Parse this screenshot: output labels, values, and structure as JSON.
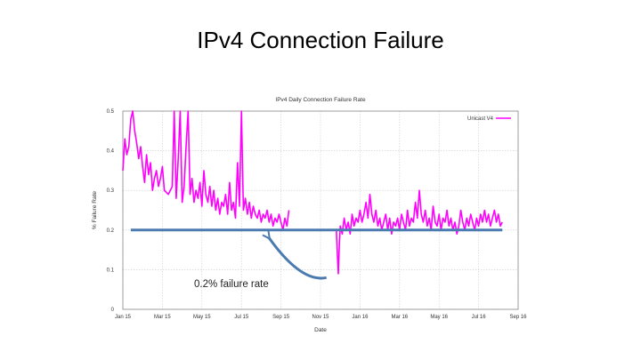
{
  "slide": {
    "title": "IPv4 Connection Failure"
  },
  "colors": {
    "series": "#ff00ff",
    "reference": "#4a7ab0",
    "grid": "#cccccc"
  },
  "chart_data": {
    "type": "line",
    "title": "IPv4 Daily Connection Failure Rate",
    "xlabel": "Date",
    "ylabel": "% Failure Rate",
    "ylim": [
      0,
      0.5
    ],
    "yticks": [
      0,
      0.1,
      0.2,
      0.3,
      0.4,
      0.5
    ],
    "ytick_labels": [
      "0",
      "0.1",
      "0.2",
      "0.3",
      "0.4",
      "0.5"
    ],
    "xlim": [
      0,
      20
    ],
    "xticks": [
      0,
      2,
      4,
      6,
      8,
      10,
      12,
      14,
      16,
      18,
      20
    ],
    "xtick_labels": [
      "Jan 15",
      "Mar 15",
      "May 15",
      "Jul 15",
      "Sep 15",
      "Nov 15",
      "Jan 16",
      "Mar 16",
      "May 16",
      "Jul 16",
      "Sep 16"
    ],
    "grid": true,
    "legend": "top-right",
    "series": [
      {
        "name": "Unicast V4",
        "segments": [
          [
            [
              0.0,
              0.35
            ],
            [
              0.1,
              0.43
            ],
            [
              0.2,
              0.39
            ],
            [
              0.3,
              0.41
            ],
            [
              0.4,
              0.48
            ],
            [
              0.5,
              0.52
            ],
            [
              0.6,
              0.45
            ],
            [
              0.7,
              0.42
            ],
            [
              0.8,
              0.38
            ],
            [
              0.9,
              0.41
            ],
            [
              1.0,
              0.36
            ],
            [
              1.1,
              0.32
            ],
            [
              1.2,
              0.39
            ],
            [
              1.3,
              0.34
            ],
            [
              1.4,
              0.37
            ],
            [
              1.5,
              0.3
            ],
            [
              1.6,
              0.33
            ],
            [
              1.7,
              0.35
            ],
            [
              1.8,
              0.31
            ],
            [
              1.9,
              0.33
            ],
            [
              2.0,
              0.36
            ],
            [
              2.1,
              0.3
            ],
            [
              2.3,
              0.29
            ],
            [
              2.5,
              0.31
            ],
            [
              2.6,
              0.5
            ],
            [
              2.7,
              0.28
            ],
            [
              2.8,
              0.38
            ],
            [
              2.9,
              0.5
            ],
            [
              3.0,
              0.27
            ],
            [
              3.1,
              0.31
            ],
            [
              3.2,
              0.41
            ],
            [
              3.3,
              0.5
            ],
            [
              3.4,
              0.29
            ],
            [
              3.5,
              0.33
            ],
            [
              3.6,
              0.27
            ],
            [
              3.7,
              0.3
            ],
            [
              3.8,
              0.28
            ],
            [
              3.9,
              0.32
            ],
            [
              4.0,
              0.26
            ],
            [
              4.1,
              0.35
            ],
            [
              4.2,
              0.29
            ],
            [
              4.3,
              0.27
            ],
            [
              4.4,
              0.31
            ],
            [
              4.5,
              0.26
            ],
            [
              4.6,
              0.3
            ],
            [
              4.7,
              0.25
            ],
            [
              4.8,
              0.28
            ],
            [
              4.9,
              0.24
            ],
            [
              5.0,
              0.27
            ],
            [
              5.1,
              0.26
            ],
            [
              5.2,
              0.29
            ],
            [
              5.3,
              0.24
            ],
            [
              5.4,
              0.32
            ],
            [
              5.5,
              0.25
            ],
            [
              5.6,
              0.27
            ],
            [
              5.7,
              0.23
            ],
            [
              5.8,
              0.37
            ],
            [
              5.9,
              0.26
            ],
            [
              6.0,
              0.5
            ],
            [
              6.1,
              0.25
            ],
            [
              6.2,
              0.28
            ],
            [
              6.3,
              0.24
            ],
            [
              6.4,
              0.27
            ],
            [
              6.5,
              0.23
            ],
            [
              6.6,
              0.26
            ],
            [
              6.7,
              0.24
            ],
            [
              6.8,
              0.23
            ],
            [
              6.9,
              0.25
            ],
            [
              7.0,
              0.22
            ],
            [
              7.1,
              0.24
            ],
            [
              7.2,
              0.23
            ],
            [
              7.3,
              0.25
            ],
            [
              7.4,
              0.22
            ],
            [
              7.5,
              0.24
            ],
            [
              7.6,
              0.21
            ],
            [
              7.7,
              0.23
            ],
            [
              7.8,
              0.22
            ],
            [
              7.9,
              0.24
            ],
            [
              8.0,
              0.22
            ],
            [
              8.1,
              0.2
            ],
            [
              8.2,
              0.23
            ],
            [
              8.3,
              0.21
            ],
            [
              8.4,
              0.25
            ]
          ],
          [
            [
              10.8,
              0.2
            ],
            [
              10.85,
              0.14
            ],
            [
              10.9,
              0.09
            ],
            [
              10.95,
              0.16
            ],
            [
              11.0,
              0.21
            ],
            [
              11.1,
              0.19
            ],
            [
              11.2,
              0.23
            ],
            [
              11.3,
              0.2
            ],
            [
              11.4,
              0.22
            ],
            [
              11.5,
              0.19
            ],
            [
              11.6,
              0.24
            ],
            [
              11.7,
              0.21
            ],
            [
              11.8,
              0.23
            ],
            [
              11.9,
              0.22
            ],
            [
              12.0,
              0.25
            ],
            [
              12.1,
              0.22
            ],
            [
              12.2,
              0.24
            ],
            [
              12.3,
              0.27
            ],
            [
              12.4,
              0.23
            ],
            [
              12.5,
              0.29
            ],
            [
              12.6,
              0.24
            ],
            [
              12.7,
              0.22
            ],
            [
              12.8,
              0.25
            ],
            [
              12.9,
              0.21
            ],
            [
              13.0,
              0.23
            ],
            [
              13.1,
              0.2
            ],
            [
              13.2,
              0.22
            ],
            [
              13.3,
              0.24
            ],
            [
              13.4,
              0.2
            ],
            [
              13.5,
              0.23
            ],
            [
              13.6,
              0.19
            ],
            [
              13.7,
              0.22
            ],
            [
              13.8,
              0.21
            ],
            [
              13.9,
              0.23
            ],
            [
              14.0,
              0.2
            ],
            [
              14.1,
              0.24
            ],
            [
              14.2,
              0.22
            ],
            [
              14.3,
              0.2
            ],
            [
              14.4,
              0.25
            ],
            [
              14.5,
              0.21
            ],
            [
              14.6,
              0.23
            ],
            [
              14.7,
              0.22
            ],
            [
              14.8,
              0.27
            ],
            [
              14.9,
              0.23
            ],
            [
              15.0,
              0.3
            ],
            [
              15.1,
              0.24
            ],
            [
              15.2,
              0.22
            ],
            [
              15.3,
              0.25
            ],
            [
              15.4,
              0.21
            ],
            [
              15.5,
              0.23
            ],
            [
              15.6,
              0.2
            ],
            [
              15.7,
              0.26
            ],
            [
              15.8,
              0.22
            ],
            [
              15.9,
              0.21
            ],
            [
              16.0,
              0.24
            ],
            [
              16.1,
              0.2
            ],
            [
              16.2,
              0.23
            ],
            [
              16.3,
              0.22
            ],
            [
              16.4,
              0.25
            ],
            [
              16.5,
              0.21
            ],
            [
              16.6,
              0.23
            ],
            [
              16.7,
              0.2
            ],
            [
              16.8,
              0.22
            ],
            [
              16.9,
              0.19
            ],
            [
              17.0,
              0.21
            ],
            [
              17.1,
              0.25
            ],
            [
              17.2,
              0.22
            ],
            [
              17.3,
              0.2
            ],
            [
              17.4,
              0.23
            ],
            [
              17.5,
              0.21
            ],
            [
              17.6,
              0.24
            ],
            [
              17.7,
              0.22
            ],
            [
              17.8,
              0.2
            ],
            [
              17.9,
              0.23
            ],
            [
              18.0,
              0.21
            ],
            [
              18.1,
              0.24
            ],
            [
              18.2,
              0.22
            ],
            [
              18.3,
              0.25
            ],
            [
              18.4,
              0.22
            ],
            [
              18.5,
              0.24
            ],
            [
              18.6,
              0.21
            ],
            [
              18.7,
              0.23
            ],
            [
              18.8,
              0.25
            ],
            [
              18.9,
              0.22
            ],
            [
              19.0,
              0.24
            ],
            [
              19.1,
              0.21
            ],
            [
              19.2,
              0.22
            ]
          ]
        ]
      }
    ],
    "annotations": [
      {
        "type": "hline",
        "y": 0.2,
        "x_from": 0.4,
        "x_to": 19.2,
        "color": "#4a7ab0"
      },
      {
        "type": "arrow",
        "label": "0.2% failure rate",
        "from": [
          10.3,
          0.08
        ],
        "to": [
          7.4,
          0.18
        ],
        "color": "#4a7ab0"
      }
    ]
  }
}
